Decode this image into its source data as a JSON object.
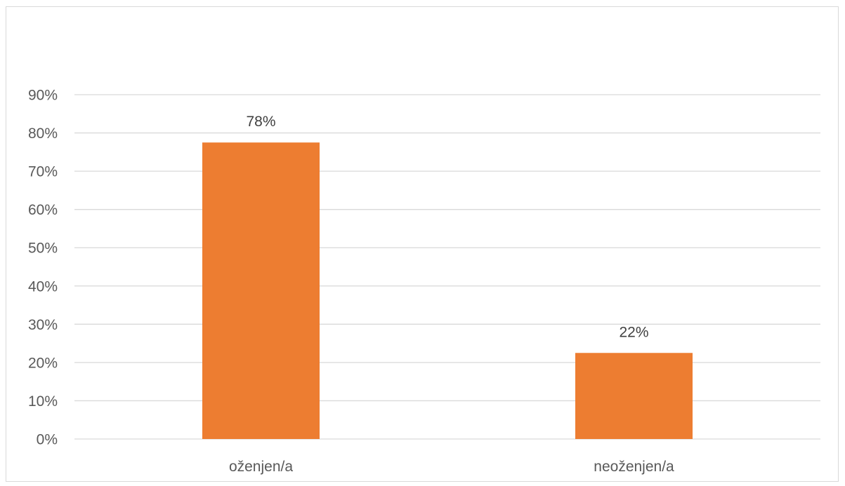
{
  "chart_data": {
    "type": "bar",
    "categories": [
      "oženjen/a",
      "neoženjen/a"
    ],
    "values": [
      77.5,
      22.5
    ],
    "data_labels": [
      "78%",
      "22%"
    ],
    "ylim": [
      0,
      90
    ],
    "y_ticks": [
      0,
      10,
      20,
      30,
      40,
      50,
      60,
      70,
      80,
      90
    ],
    "y_tick_labels": [
      "0%",
      "10%",
      "20%",
      "30%",
      "40%",
      "50%",
      "60%",
      "70%",
      "80%",
      "90%"
    ],
    "grid": true,
    "legend": "none",
    "bar_color": "#ed7d31",
    "grid_color": "#d9d9d9",
    "text_color": "#595959"
  }
}
